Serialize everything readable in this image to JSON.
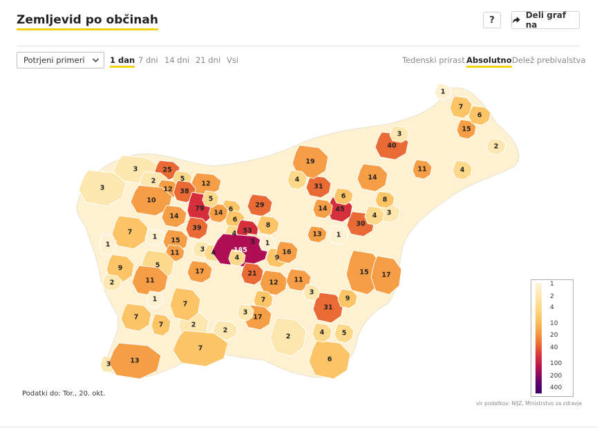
{
  "header": {
    "title": "Zemljevid po občinah",
    "help_label": "?",
    "share_label": "Deli graf na",
    "share_icon": "share-arrow-icon"
  },
  "controls": {
    "select_value": "Potrjeni primeri",
    "period_tabs": [
      {
        "label": "1 dan",
        "active": true
      },
      {
        "label": "7 dni",
        "active": false
      },
      {
        "label": "14 dni",
        "active": false
      },
      {
        "label": "21 dni",
        "active": false
      },
      {
        "label": "Vsi",
        "active": false
      }
    ],
    "mode_tabs": [
      {
        "label": "Tedenski prirast",
        "active": false
      },
      {
        "label": "Absolutno",
        "active": true
      },
      {
        "label": "Delež prebivalstva",
        "active": false
      }
    ]
  },
  "map": {
    "colors": {
      "c1": "#fdf1d2",
      "c2": "#fde7b0",
      "c4": "#fcd98a",
      "c10": "#fbc466",
      "c20": "#f59e45",
      "c40": "#ea6a35",
      "c100": "#d62f3c",
      "c200": "#b00e52",
      "c400": "#66046e",
      "border": "#ffffff",
      "empty": "#ffffff"
    },
    "regions": [
      {
        "v": "3",
        "c": "c2"
      },
      {
        "v": "3",
        "c": "c2"
      },
      {
        "v": "25",
        "c": "c40"
      },
      {
        "v": "2",
        "c": "c2"
      },
      {
        "v": "5",
        "c": "c4"
      },
      {
        "v": "12",
        "c": "c20"
      },
      {
        "v": "12",
        "c": "c20"
      },
      {
        "v": "38",
        "c": "c40"
      },
      {
        "v": "10",
        "c": "c20"
      },
      {
        "v": "79",
        "c": "c100"
      },
      {
        "v": "14",
        "c": "c20"
      },
      {
        "v": "6",
        "c": "c10"
      },
      {
        "v": "14",
        "c": "c20"
      },
      {
        "v": "5",
        "c": "c4"
      },
      {
        "v": "39",
        "c": "c40"
      },
      {
        "v": "7",
        "c": "c10"
      },
      {
        "v": "1",
        "c": "c1"
      },
      {
        "v": "15",
        "c": "c20"
      },
      {
        "v": "1",
        "c": "c1"
      },
      {
        "v": "11",
        "c": "c20"
      },
      {
        "v": "3",
        "c": "c2"
      },
      {
        "v": "4",
        "c": "c4"
      },
      {
        "v": "6",
        "c": "c10"
      },
      {
        "v": "4",
        "c": "c4"
      },
      {
        "v": "53",
        "c": "c100"
      },
      {
        "v": "5",
        "c": "c4"
      },
      {
        "v": "185",
        "c": "c200"
      },
      {
        "v": "4",
        "c": "c4"
      },
      {
        "v": "29",
        "c": "c40"
      },
      {
        "v": "8",
        "c": "c10"
      },
      {
        "v": "1",
        "c": "c1"
      },
      {
        "v": "9",
        "c": "c10"
      },
      {
        "v": "5",
        "c": "c4"
      },
      {
        "v": "17",
        "c": "c20"
      },
      {
        "v": "11",
        "c": "c20"
      },
      {
        "v": "21",
        "c": "c40"
      },
      {
        "v": "12",
        "c": "c20"
      },
      {
        "v": "16",
        "c": "c20"
      },
      {
        "v": "9",
        "c": "c10"
      },
      {
        "v": "11",
        "c": "c20"
      },
      {
        "v": "2",
        "c": "c2"
      },
      {
        "v": "7",
        "c": "c10"
      },
      {
        "v": "7",
        "c": "c10"
      },
      {
        "v": "1",
        "c": "c1"
      },
      {
        "v": "2",
        "c": "c2"
      },
      {
        "v": "7",
        "c": "c10"
      },
      {
        "v": "7",
        "c": "c10"
      },
      {
        "v": "2",
        "c": "c2"
      },
      {
        "v": "3",
        "c": "c2"
      },
      {
        "v": "13",
        "c": "c20"
      },
      {
        "v": "7",
        "c": "c10"
      },
      {
        "v": "17",
        "c": "c20"
      },
      {
        "v": "3",
        "c": "c2"
      },
      {
        "v": "2",
        "c": "c2"
      },
      {
        "v": "6",
        "c": "c10"
      },
      {
        "v": "4",
        "c": "c4"
      },
      {
        "v": "31",
        "c": "c40"
      },
      {
        "v": "5",
        "c": "c4"
      },
      {
        "v": "3",
        "c": "c2"
      },
      {
        "v": "9",
        "c": "c10"
      },
      {
        "v": "15",
        "c": "c20"
      },
      {
        "v": "17",
        "c": "c20"
      },
      {
        "v": "30",
        "c": "c40"
      },
      {
        "v": "45",
        "c": "c100"
      },
      {
        "v": "14",
        "c": "c20"
      },
      {
        "v": "31",
        "c": "c40"
      },
      {
        "v": "19",
        "c": "c20"
      },
      {
        "v": "40",
        "c": "c40"
      },
      {
        "v": "14",
        "c": "c20"
      },
      {
        "v": "13",
        "c": "c20"
      },
      {
        "v": "6",
        "c": "c10"
      },
      {
        "v": "15",
        "c": "c20"
      },
      {
        "v": "11",
        "c": "c20"
      },
      {
        "v": "4",
        "c": "c4"
      },
      {
        "v": "7",
        "c": "c10"
      },
      {
        "v": "6",
        "c": "c10"
      },
      {
        "v": "2",
        "c": "c2"
      },
      {
        "v": "1",
        "c": "c1"
      },
      {
        "v": "3",
        "c": "c2"
      },
      {
        "v": "8",
        "c": "c10"
      },
      {
        "v": "4",
        "c": "c4"
      },
      {
        "v": "3",
        "c": "c2"
      },
      {
        "v": "1",
        "c": "c1"
      },
      {
        "v": "4",
        "c": "c4"
      }
    ]
  },
  "legend": {
    "ticks": [
      "1",
      "2",
      "4",
      "10",
      "20",
      "40",
      "100",
      "200",
      "400"
    ],
    "gradient": [
      "#fdf3dc",
      "#fde7b0",
      "#fcd98a",
      "#fbc466",
      "#f59e45",
      "#ea6a35",
      "#d62f3c",
      "#b00e52",
      "#66046e",
      "#3b0066"
    ]
  },
  "footer": {
    "data_date": "Podatki do: Tor., 20. okt.",
    "source": "vir podatkov: NIJZ, Ministrstvo za zdravje"
  }
}
